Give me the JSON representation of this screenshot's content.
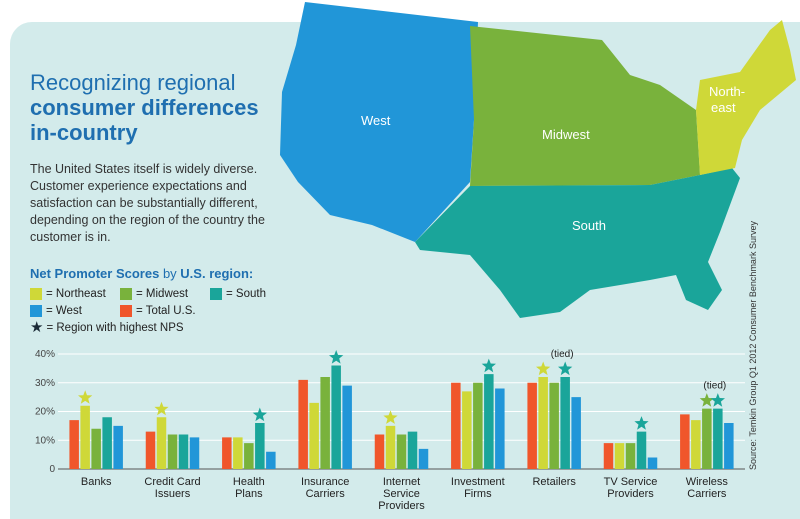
{
  "title": {
    "line1": "Recognizing regional",
    "line2": "consumer differences",
    "line3": "in-country"
  },
  "description": "The United States itself is widely diverse. Customer experience expectations and satisfaction can be substantially different, depending on the region of the country the customer is in.",
  "map": {
    "labels": [
      "West",
      "Midwest",
      "South",
      "North-",
      "east"
    ]
  },
  "legend": {
    "heading_a": "Net Promoter Scores",
    "heading_b": " by ",
    "heading_c": "U.S. region:",
    "items": [
      "= Northeast",
      "= Midwest",
      "= South",
      "= West",
      "= Total U.S.",
      "= Region with highest NPS"
    ]
  },
  "source": "Source: Temkin Group Q1 2012 Consumer Benchmark Survey",
  "colors": {
    "total": "#f0562b",
    "northeast": "#cfd838",
    "midwest": "#79b23c",
    "south": "#1aa59a",
    "west": "#2196d8",
    "star_northeast": "#cfd838",
    "star_south": "#1aa59a"
  },
  "chart_data": {
    "type": "bar",
    "ylim": [
      0,
      40
    ],
    "yticks": [
      "0",
      "10%",
      "20%",
      "30%",
      "40%"
    ],
    "categories": [
      [
        "Banks"
      ],
      [
        "Credit Card",
        "Issuers"
      ],
      [
        "Health",
        "Plans"
      ],
      [
        "Insurance",
        "Carriers"
      ],
      [
        "Internet",
        "Service",
        "Providers"
      ],
      [
        "Investment",
        "Firms"
      ],
      [
        "Retailers"
      ],
      [
        "TV Service",
        "Providers"
      ],
      [
        "Wireless",
        "Carriers"
      ]
    ],
    "series": [
      {
        "name": "Total U.S.",
        "color": "#f0562b",
        "values": [
          17,
          13,
          11,
          31,
          12,
          30,
          30,
          9,
          19
        ]
      },
      {
        "name": "Northeast",
        "color": "#cfd838",
        "values": [
          22,
          18,
          11,
          23,
          15,
          27,
          32,
          9,
          17
        ]
      },
      {
        "name": "Midwest",
        "color": "#79b23c",
        "values": [
          14,
          12,
          9,
          32,
          12,
          30,
          30,
          9,
          21
        ]
      },
      {
        "name": "South",
        "color": "#1aa59a",
        "values": [
          18,
          12,
          16,
          36,
          13,
          33,
          32,
          13,
          21
        ]
      },
      {
        "name": "West",
        "color": "#2196d8",
        "values": [
          15,
          11,
          6,
          29,
          7,
          28,
          25,
          4,
          16
        ]
      }
    ],
    "stars": [
      {
        "category": 0,
        "series": 1
      },
      {
        "category": 1,
        "series": 1
      },
      {
        "category": 2,
        "series": 3
      },
      {
        "category": 3,
        "series": 3
      },
      {
        "category": 4,
        "series": 1
      },
      {
        "category": 5,
        "series": 3
      },
      {
        "category": 6,
        "series": 1
      },
      {
        "category": 6,
        "series": 3
      },
      {
        "category": 7,
        "series": 3
      },
      {
        "category": 8,
        "series": 2
      },
      {
        "category": 8,
        "series": 3
      }
    ],
    "annotations": [
      {
        "category": 6,
        "text": "(tied)"
      },
      {
        "category": 8,
        "text": "(tied)"
      }
    ]
  }
}
